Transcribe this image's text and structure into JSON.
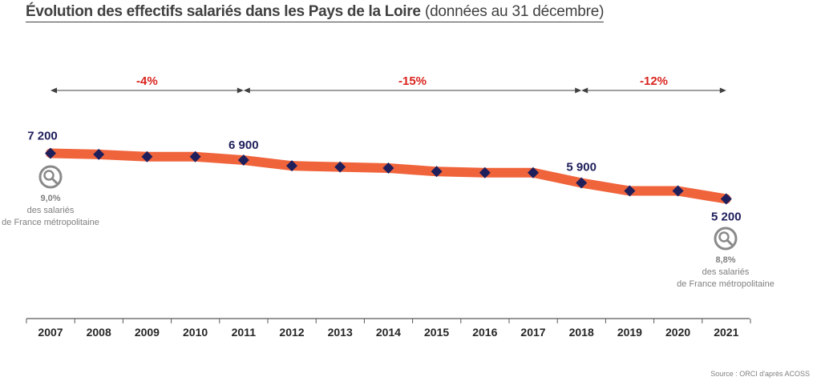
{
  "title": {
    "bold": "Évolution des effectifs salariés dans les Pays de la Loire",
    "light": "(données au 31 décembre)"
  },
  "source": "Source : ORCI d'après ACOSS",
  "colors": {
    "line": "#f0643c",
    "marker": "#1f1f5c",
    "pct": "#d9231d",
    "note": "#7f7f7f"
  },
  "chart_data": {
    "type": "line",
    "x": [
      "2007",
      "2008",
      "2009",
      "2010",
      "2011",
      "2012",
      "2013",
      "2014",
      "2015",
      "2016",
      "2017",
      "2018",
      "2019",
      "2020",
      "2021"
    ],
    "series": [
      {
        "values": [
          7200,
          7150,
          7050,
          7050,
          6900,
          6650,
          6600,
          6550,
          6400,
          6350,
          6350,
          5900,
          5550,
          5550,
          5200
        ]
      }
    ],
    "data_labels": [
      {
        "x": "2007",
        "text": "7 200"
      },
      {
        "x": "2011",
        "text": "6 900"
      },
      {
        "x": "2018",
        "text": "5 900"
      },
      {
        "x": "2021",
        "text": "5 200"
      }
    ],
    "periods": [
      {
        "from": "2007",
        "to": "2011",
        "label": "-4%"
      },
      {
        "from": "2011",
        "to": "2018",
        "label": "-15%"
      },
      {
        "from": "2018",
        "to": "2021",
        "label": "-12%"
      }
    ],
    "notes": [
      {
        "x": "2007",
        "icon": "magnifier-chart-icon",
        "pct": "9,0%",
        "line1": "des salariés",
        "line2": "de France métropolitaine"
      },
      {
        "x": "2021",
        "icon": "magnifier-chart-icon",
        "pct": "8,8%",
        "line1": "des salariés",
        "line2": "de France métropolitaine"
      }
    ],
    "grid": false,
    "legend": "none"
  }
}
